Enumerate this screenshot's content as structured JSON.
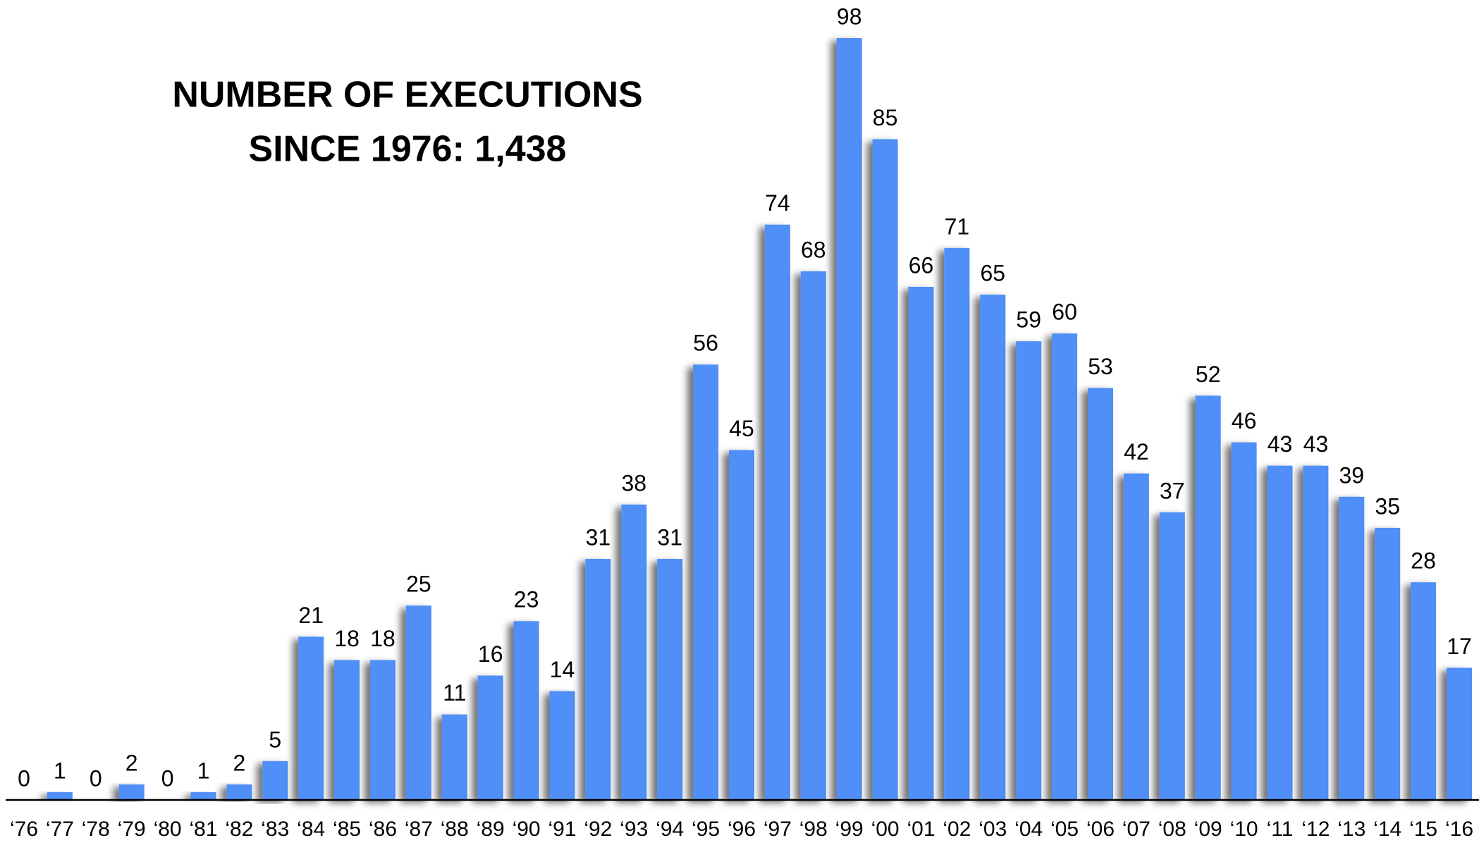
{
  "chart_data": {
    "type": "bar",
    "title_lines": [
      "NUMBER OF EXECUTIONS",
      "SINCE 1976: 1,438"
    ],
    "categories": [
      "‘76",
      "‘77",
      "‘78",
      "‘79",
      "‘80",
      "‘81",
      "‘82",
      "‘83",
      "‘84",
      "‘85",
      "‘86",
      "‘87",
      "‘88",
      "‘89",
      "‘90",
      "‘91",
      "‘92",
      "‘93",
      "‘94",
      "‘95",
      "‘96",
      "‘97",
      "‘98",
      "‘99",
      "‘00",
      "‘01",
      "‘02",
      "‘03",
      "‘04",
      "‘05",
      "‘06",
      "‘07",
      "‘08",
      "‘09",
      "‘10",
      "‘11",
      "‘12",
      "‘13",
      "‘14",
      "‘15",
      "‘16"
    ],
    "values": [
      0,
      1,
      0,
      2,
      0,
      1,
      2,
      5,
      21,
      18,
      18,
      25,
      11,
      16,
      23,
      14,
      31,
      38,
      31,
      56,
      45,
      74,
      68,
      98,
      85,
      66,
      71,
      65,
      59,
      60,
      53,
      42,
      37,
      52,
      46,
      43,
      43,
      39,
      35,
      28,
      17
    ],
    "color": "#4f8ff7"
  }
}
